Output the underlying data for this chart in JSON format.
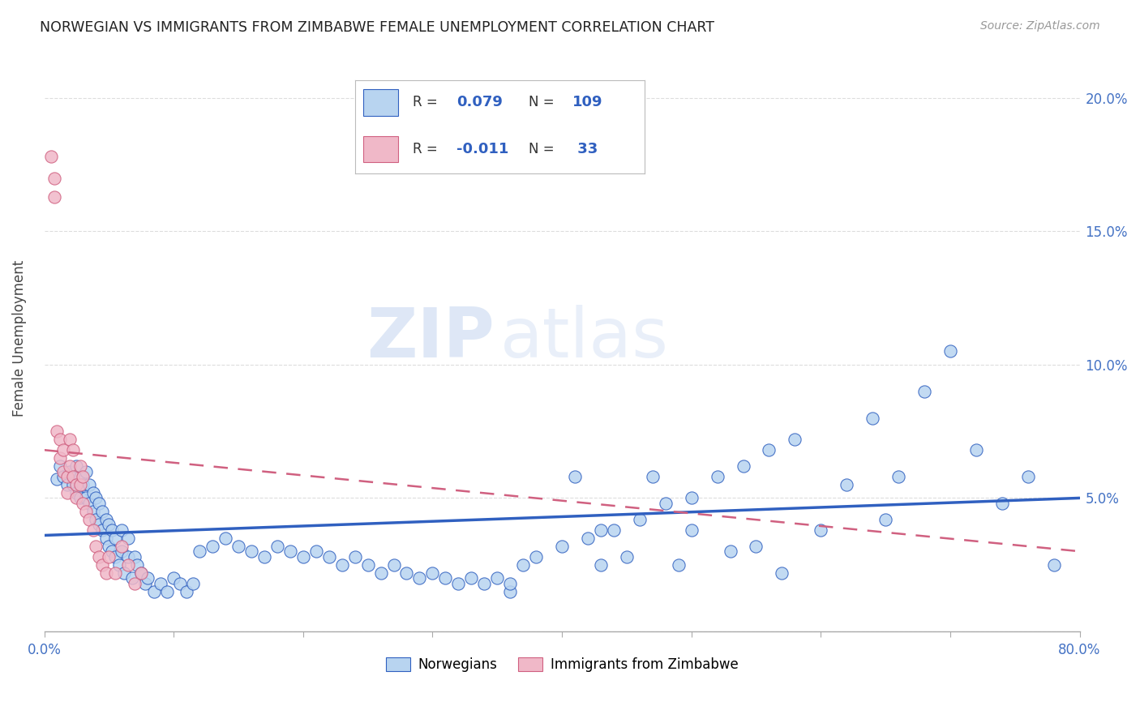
{
  "title": "NORWEGIAN VS IMMIGRANTS FROM ZIMBABWE FEMALE UNEMPLOYMENT CORRELATION CHART",
  "source": "Source: ZipAtlas.com",
  "ylabel": "Female Unemployment",
  "xlim": [
    0.0,
    0.8
  ],
  "ylim": [
    0.0,
    0.22
  ],
  "yticks": [
    0.0,
    0.05,
    0.1,
    0.15,
    0.2
  ],
  "ytick_labels": [
    "",
    "5.0%",
    "10.0%",
    "15.0%",
    "20.0%"
  ],
  "xticks": [
    0.0,
    0.1,
    0.2,
    0.3,
    0.4,
    0.5,
    0.6,
    0.7,
    0.8
  ],
  "xtick_labels": [
    "0.0%",
    "",
    "",
    "",
    "",
    "",
    "",
    "",
    "80.0%"
  ],
  "norwegian_color": "#b8d4f0",
  "zimbabwe_color": "#f0b8c8",
  "trend_norwegian_color": "#3060c0",
  "trend_zimbabwe_color": "#d06080",
  "nor_trend_x": [
    0.0,
    0.8
  ],
  "nor_trend_y": [
    0.036,
    0.05
  ],
  "zim_trend_x": [
    0.0,
    0.8
  ],
  "zim_trend_y": [
    0.068,
    0.03
  ],
  "norwegian_x": [
    0.01,
    0.012,
    0.015,
    0.018,
    0.02,
    0.022,
    0.025,
    0.025,
    0.028,
    0.028,
    0.03,
    0.032,
    0.032,
    0.035,
    0.035,
    0.038,
    0.038,
    0.04,
    0.04,
    0.042,
    0.042,
    0.045,
    0.045,
    0.048,
    0.048,
    0.05,
    0.05,
    0.052,
    0.052,
    0.055,
    0.055,
    0.058,
    0.06,
    0.06,
    0.062,
    0.065,
    0.065,
    0.068,
    0.07,
    0.072,
    0.075,
    0.078,
    0.08,
    0.085,
    0.09,
    0.095,
    0.1,
    0.105,
    0.11,
    0.115,
    0.12,
    0.13,
    0.14,
    0.15,
    0.16,
    0.17,
    0.18,
    0.19,
    0.2,
    0.21,
    0.22,
    0.23,
    0.24,
    0.25,
    0.26,
    0.27,
    0.28,
    0.29,
    0.3,
    0.31,
    0.32,
    0.33,
    0.34,
    0.35,
    0.36,
    0.38,
    0.4,
    0.42,
    0.43,
    0.44,
    0.45,
    0.46,
    0.48,
    0.49,
    0.5,
    0.5,
    0.52,
    0.53,
    0.54,
    0.55,
    0.56,
    0.57,
    0.58,
    0.6,
    0.62,
    0.64,
    0.65,
    0.66,
    0.68,
    0.7,
    0.72,
    0.74,
    0.76,
    0.78,
    0.36,
    0.37,
    0.41,
    0.43,
    0.47
  ],
  "norwegian_y": [
    0.057,
    0.062,
    0.058,
    0.055,
    0.06,
    0.055,
    0.052,
    0.062,
    0.05,
    0.058,
    0.055,
    0.05,
    0.06,
    0.048,
    0.055,
    0.045,
    0.052,
    0.042,
    0.05,
    0.04,
    0.048,
    0.038,
    0.045,
    0.035,
    0.042,
    0.032,
    0.04,
    0.03,
    0.038,
    0.028,
    0.035,
    0.025,
    0.03,
    0.038,
    0.022,
    0.028,
    0.035,
    0.02,
    0.028,
    0.025,
    0.022,
    0.018,
    0.02,
    0.015,
    0.018,
    0.015,
    0.02,
    0.018,
    0.015,
    0.018,
    0.03,
    0.032,
    0.035,
    0.032,
    0.03,
    0.028,
    0.032,
    0.03,
    0.028,
    0.03,
    0.028,
    0.025,
    0.028,
    0.025,
    0.022,
    0.025,
    0.022,
    0.02,
    0.022,
    0.02,
    0.018,
    0.02,
    0.018,
    0.02,
    0.015,
    0.028,
    0.032,
    0.035,
    0.025,
    0.038,
    0.028,
    0.042,
    0.048,
    0.025,
    0.05,
    0.038,
    0.058,
    0.03,
    0.062,
    0.032,
    0.068,
    0.022,
    0.072,
    0.038,
    0.055,
    0.08,
    0.042,
    0.058,
    0.09,
    0.105,
    0.068,
    0.048,
    0.058,
    0.025,
    0.018,
    0.025,
    0.058,
    0.038,
    0.058
  ],
  "zimbabwe_x": [
    0.005,
    0.008,
    0.008,
    0.01,
    0.012,
    0.012,
    0.015,
    0.015,
    0.018,
    0.018,
    0.02,
    0.02,
    0.022,
    0.022,
    0.025,
    0.025,
    0.028,
    0.028,
    0.03,
    0.03,
    0.032,
    0.035,
    0.038,
    0.04,
    0.042,
    0.045,
    0.048,
    0.05,
    0.055,
    0.06,
    0.065,
    0.07,
    0.075
  ],
  "zimbabwe_y": [
    0.178,
    0.17,
    0.163,
    0.075,
    0.072,
    0.065,
    0.06,
    0.068,
    0.058,
    0.052,
    0.072,
    0.062,
    0.058,
    0.068,
    0.055,
    0.05,
    0.062,
    0.055,
    0.048,
    0.058,
    0.045,
    0.042,
    0.038,
    0.032,
    0.028,
    0.025,
    0.022,
    0.028,
    0.022,
    0.032,
    0.025,
    0.018,
    0.022
  ],
  "watermark_line1": "ZIP",
  "watermark_line2": "atlas",
  "background_color": "#ffffff",
  "grid_color": "#dddddd",
  "legend_label_nor": "Norwegians",
  "legend_label_zim": "Immigrants from Zimbabwe"
}
